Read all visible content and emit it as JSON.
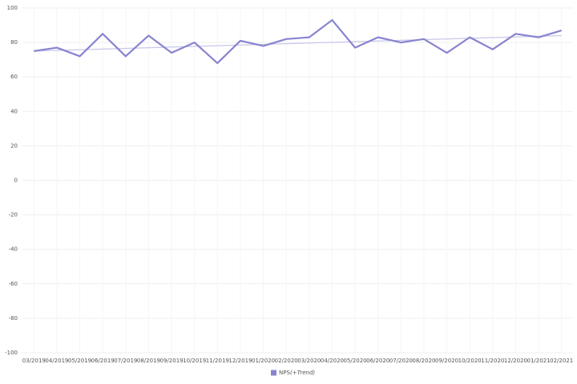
{
  "chart_data": {
    "type": "line",
    "categories": [
      "03/2019",
      "04/2019",
      "05/2019",
      "06/2019",
      "07/2019",
      "08/2019",
      "09/2019",
      "10/2019",
      "11/2019",
      "12/2019",
      "01/2020",
      "02/2020",
      "03/2020",
      "04/2020",
      "05/2020",
      "06/2020",
      "07/2020",
      "08/2020",
      "09/2020",
      "10/2020",
      "11/2020",
      "12/2020",
      "01/2021",
      "02/2021"
    ],
    "series": [
      {
        "name": "NPS",
        "color": "#8884d0",
        "values": [
          75,
          77,
          72,
          85,
          72,
          84,
          74,
          80,
          68,
          81,
          78,
          82,
          83,
          93,
          77,
          83,
          80,
          82,
          74,
          83,
          76,
          85,
          83,
          87
        ]
      }
    ],
    "trend": {
      "label": "(+Trend)",
      "color": "#c9c7ea",
      "values": [
        75,
        84
      ]
    },
    "ylim": [
      -100,
      100
    ],
    "yticks": [
      -100,
      -80,
      -60,
      -40,
      -20,
      0,
      20,
      40,
      60,
      80,
      100
    ],
    "grid": true,
    "legend": "bottom"
  }
}
